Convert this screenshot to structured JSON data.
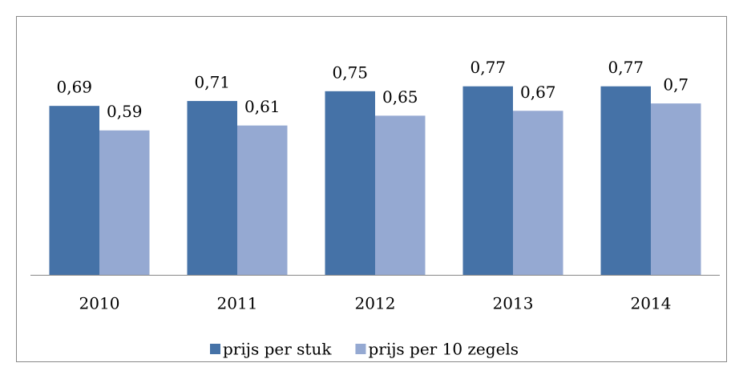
{
  "chart_data": {
    "type": "bar",
    "categories": [
      "2010",
      "2011",
      "2012",
      "2013",
      "2014"
    ],
    "series": [
      {
        "name": "prijs per stuk",
        "color": "#4572a7",
        "values": [
          0.69,
          0.71,
          0.75,
          0.77,
          0.77
        ],
        "value_labels": [
          "0,69",
          "0,71",
          "0,75",
          "0,77",
          "0,77"
        ]
      },
      {
        "name": "prijs per 10 zegels",
        "color": "#95a9d2",
        "values": [
          0.59,
          0.61,
          0.65,
          0.67,
          0.7
        ],
        "value_labels": [
          "0,59",
          "0,61",
          "0,65",
          "0,67",
          "0,7"
        ]
      }
    ],
    "ylim": [
      0,
      0.9
    ],
    "legend": "bottom"
  }
}
